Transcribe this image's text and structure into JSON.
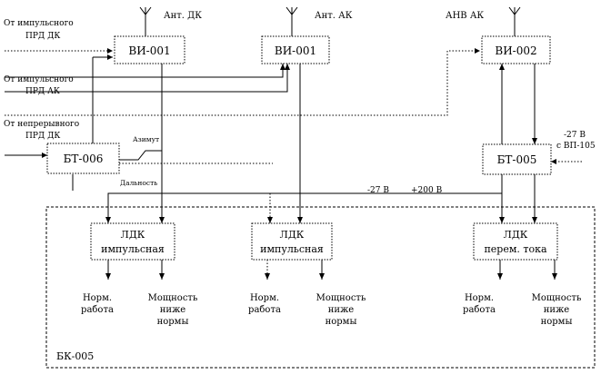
{
  "antennas": {
    "ant_dk": "Ант. ДК",
    "ant_ak": "Ант. АК",
    "anv_ak": "АНВ  АК"
  },
  "inputs": {
    "imp_dk_1": "От импульсного",
    "imp_dk_2": "ПРД  ДК",
    "imp_ak_1": "От импульсного",
    "imp_ak_2": "ПРД  АК",
    "cont_dk_1": "От непрерывного",
    "cont_dk_2": "ПРД  ДК",
    "ext_1": "-27 В",
    "ext_2": "с ВП-105"
  },
  "blocks": {
    "vi1": "ВИ-001",
    "vi2": "ВИ-001",
    "vi3": "ВИ-002",
    "bt6": "БТ-006",
    "bt5": "БТ-005"
  },
  "signals": {
    "azimuth": "Азимут",
    "range": "Дальность",
    "bus_27": "-27 В",
    "bus_200": "+200 В"
  },
  "ldk": [
    {
      "line1": "ЛДК",
      "line2": "импульсная"
    },
    {
      "line1": "ЛДК",
      "line2": "импульсная"
    },
    {
      "line1": "ЛДК",
      "line2": "перем. тока"
    }
  ],
  "outputs": [
    {
      "norm_1": "Норм.",
      "norm_2": "работа",
      "low_1": "Мощность",
      "low_2": "ниже",
      "low_3": "нормы"
    },
    {
      "norm_1": "Норм.",
      "norm_2": "работа",
      "low_1": "Мощность",
      "low_2": "ниже",
      "low_3": "нормы"
    },
    {
      "norm_1": "Норм.",
      "norm_2": "работа",
      "low_1": "Мощность",
      "low_2": "ниже",
      "low_3": "нормы"
    }
  ],
  "unit_label": "БК-005"
}
